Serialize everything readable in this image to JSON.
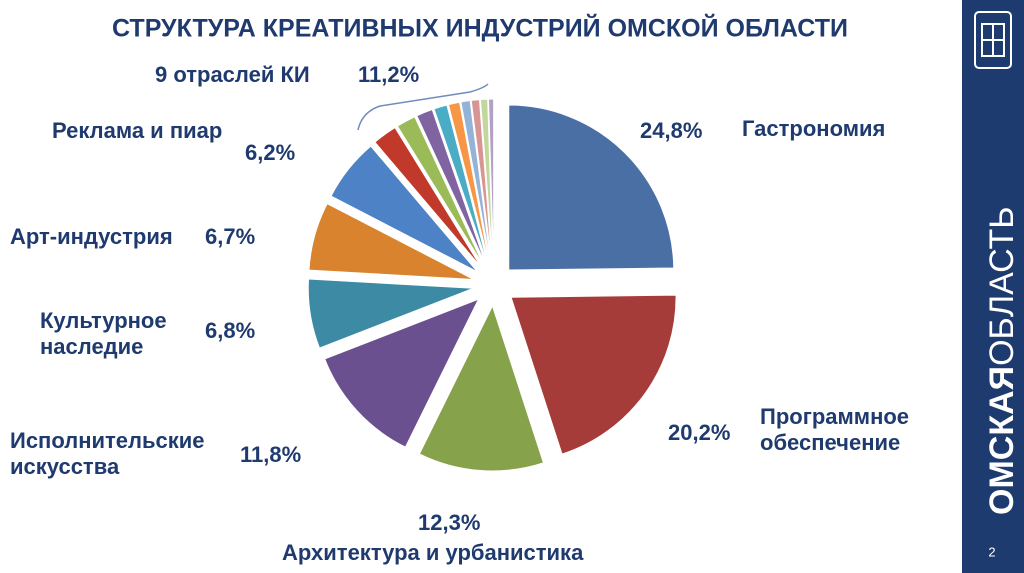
{
  "chart_data": {
    "type": "pie",
    "title": "СТРУКТУРА КРЕАТИВНЫХ ИНДУСТРИЙ ОМСКОЙ ОБЛАСТИ",
    "categories": [
      "Гастрономия",
      "Программное обеспечение",
      "Архитектура и урбанистика",
      "Исполнительские искусства",
      "Культурное наследие",
      "Арт-индустрия",
      "Реклама и пиар",
      null,
      null,
      null,
      null,
      null,
      null,
      null,
      null,
      null
    ],
    "values": [
      24.8,
      20.2,
      12.3,
      11.8,
      6.8,
      6.7,
      6.2,
      2.4,
      1.9,
      1.6,
      1.3,
      1.1,
      0.9,
      0.8,
      0.7,
      0.5
    ],
    "value_labels": [
      "24,8%",
      "20,2%",
      "12,3%",
      "11,8%",
      "6,8%",
      "6,7%",
      "6,2%",
      null,
      null,
      null,
      null,
      null,
      null,
      null,
      null,
      null
    ],
    "colors": [
      "#4a6fa5",
      "#a63c3a",
      "#86a24a",
      "#6b5090",
      "#3c8aa3",
      "#d9832e",
      "#4d82c6",
      "#c0392b",
      "#9bbb59",
      "#8064a2",
      "#4bacc6",
      "#f79646",
      "#95b3d7",
      "#d99594",
      "#c3d69b",
      "#b2a1c7"
    ],
    "group": {
      "label": "9 отраслей КИ",
      "value": 11.2,
      "value_label": "11,2%"
    }
  },
  "slide": {
    "brand_bold": "ОМСКАЯ",
    "brand_light": "ОБЛАСТЬ",
    "page_number": "2"
  }
}
